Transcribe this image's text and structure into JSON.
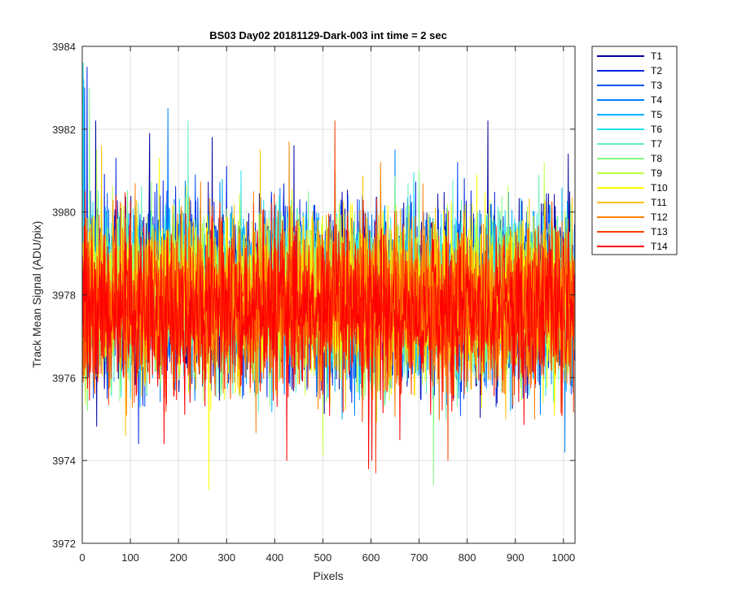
{
  "chart_data": {
    "type": "line",
    "title": "BS03 Day02 20181129-Dark-003 int time = 2 sec",
    "xlabel": "Pixels",
    "ylabel": "Track Mean Signal (ADU/pix)",
    "xlim": [
      0,
      1024
    ],
    "ylim": [
      3972,
      3984
    ],
    "xticks": [
      0,
      100,
      200,
      300,
      400,
      500,
      600,
      700,
      800,
      900,
      1000
    ],
    "yticks": [
      3972,
      3974,
      3976,
      3978,
      3980,
      3982,
      3984
    ],
    "grid": true,
    "legend_location": "outside-right-top",
    "series": [
      {
        "name": "T1",
        "color": "#0000a0",
        "mean": 3978.0,
        "noise_sd": 1.05,
        "seed": 11,
        "spikes": [
          [
            28,
            3982.2
          ],
          [
            140,
            3981.9
          ],
          [
            270,
            3981.8
          ],
          [
            440,
            3981.6
          ],
          [
            843,
            3982.2
          ],
          [
            925,
            3975.5
          ],
          [
            1010,
            3981.4
          ]
        ]
      },
      {
        "name": "T2",
        "color": "#0020e0",
        "mean": 3978.1,
        "noise_sd": 1.05,
        "seed": 23,
        "spikes": [
          [
            10,
            3983.5
          ],
          [
            70,
            3981.3
          ],
          [
            117,
            3974.4
          ],
          [
            300,
            3981.1
          ],
          [
            560,
            3975.4
          ],
          [
            860,
            3975.3
          ]
        ]
      },
      {
        "name": "T3",
        "color": "#0050ff",
        "mean": 3978.0,
        "noise_sd": 1.0,
        "seed": 37,
        "spikes": [
          [
            5,
            3983.0
          ],
          [
            235,
            3980.9
          ],
          [
            390,
            3975.5
          ],
          [
            780,
            3981.2
          ]
        ]
      },
      {
        "name": "T4",
        "color": "#0080ff",
        "mean": 3978.0,
        "noise_sd": 1.0,
        "seed": 41,
        "spikes": [
          [
            178,
            3982.5
          ],
          [
            420,
            3975.6
          ],
          [
            650,
            3981.5
          ],
          [
            1003,
            3974.2
          ]
        ]
      },
      {
        "name": "T5",
        "color": "#00b0ff",
        "mean": 3978.1,
        "noise_sd": 1.0,
        "seed": 53,
        "spikes": [
          [
            3,
            3983.2
          ],
          [
            120,
            3975.3
          ],
          [
            540,
            3975.0
          ],
          [
            890,
            3975.2
          ]
        ]
      },
      {
        "name": "T6",
        "color": "#20e0f0",
        "mean": 3978.0,
        "noise_sd": 1.0,
        "seed": 67,
        "spikes": [
          [
            2,
            3983.6
          ],
          [
            60,
            3975.6
          ],
          [
            330,
            3981.0
          ],
          [
            650,
            3975.5
          ]
        ]
      },
      {
        "name": "T7",
        "color": "#60f0c0",
        "mean": 3978.0,
        "noise_sd": 1.0,
        "seed": 71,
        "spikes": [
          [
            220,
            3982.2
          ],
          [
            430,
            3981.4
          ],
          [
            980,
            3975.4
          ]
        ]
      },
      {
        "name": "T8",
        "color": "#80ff80",
        "mean": 3978.0,
        "noise_sd": 1.0,
        "seed": 83,
        "spikes": [
          [
            15,
            3983.0
          ],
          [
            730,
            3973.4
          ],
          [
            700,
            3981.0
          ]
        ]
      },
      {
        "name": "T9",
        "color": "#c0ff40",
        "mean": 3978.0,
        "noise_sd": 1.0,
        "seed": 97,
        "spikes": [
          [
            30,
            3981.5
          ],
          [
            500,
            3974.1
          ],
          [
            960,
            3981.2
          ]
        ]
      },
      {
        "name": "T10",
        "color": "#ffff00",
        "mean": 3977.9,
        "noise_sd": 1.0,
        "seed": 101,
        "spikes": [
          [
            263,
            3973.3
          ],
          [
            160,
            3981.3
          ],
          [
            820,
            3980.9
          ]
        ]
      },
      {
        "name": "T11",
        "color": "#ffc000",
        "mean": 3977.9,
        "noise_sd": 1.0,
        "seed": 113,
        "spikes": [
          [
            40,
            3981.6
          ],
          [
            90,
            3974.6
          ],
          [
            370,
            3981.5
          ],
          [
            880,
            3975.0
          ]
        ]
      },
      {
        "name": "T12",
        "color": "#ff8000",
        "mean": 3977.8,
        "noise_sd": 1.0,
        "seed": 127,
        "spikes": [
          [
            430,
            3981.7
          ],
          [
            620,
            3981.2
          ],
          [
            940,
            3975.0
          ]
        ]
      },
      {
        "name": "T13",
        "color": "#ff4000",
        "mean": 3977.7,
        "noise_sd": 1.0,
        "seed": 131,
        "spikes": [
          [
            525,
            3982.2
          ],
          [
            610,
            3973.7
          ],
          [
            760,
            3974.0
          ]
        ]
      },
      {
        "name": "T14",
        "color": "#ff0000",
        "mean": 3977.6,
        "noise_sd": 1.0,
        "seed": 139,
        "spikes": [
          [
            6,
            3980.5
          ],
          [
            170,
            3974.4
          ],
          [
            425,
            3974.0
          ],
          [
            595,
            3973.8
          ],
          [
            602,
            3974.0
          ],
          [
            660,
            3974.5
          ]
        ]
      }
    ]
  }
}
